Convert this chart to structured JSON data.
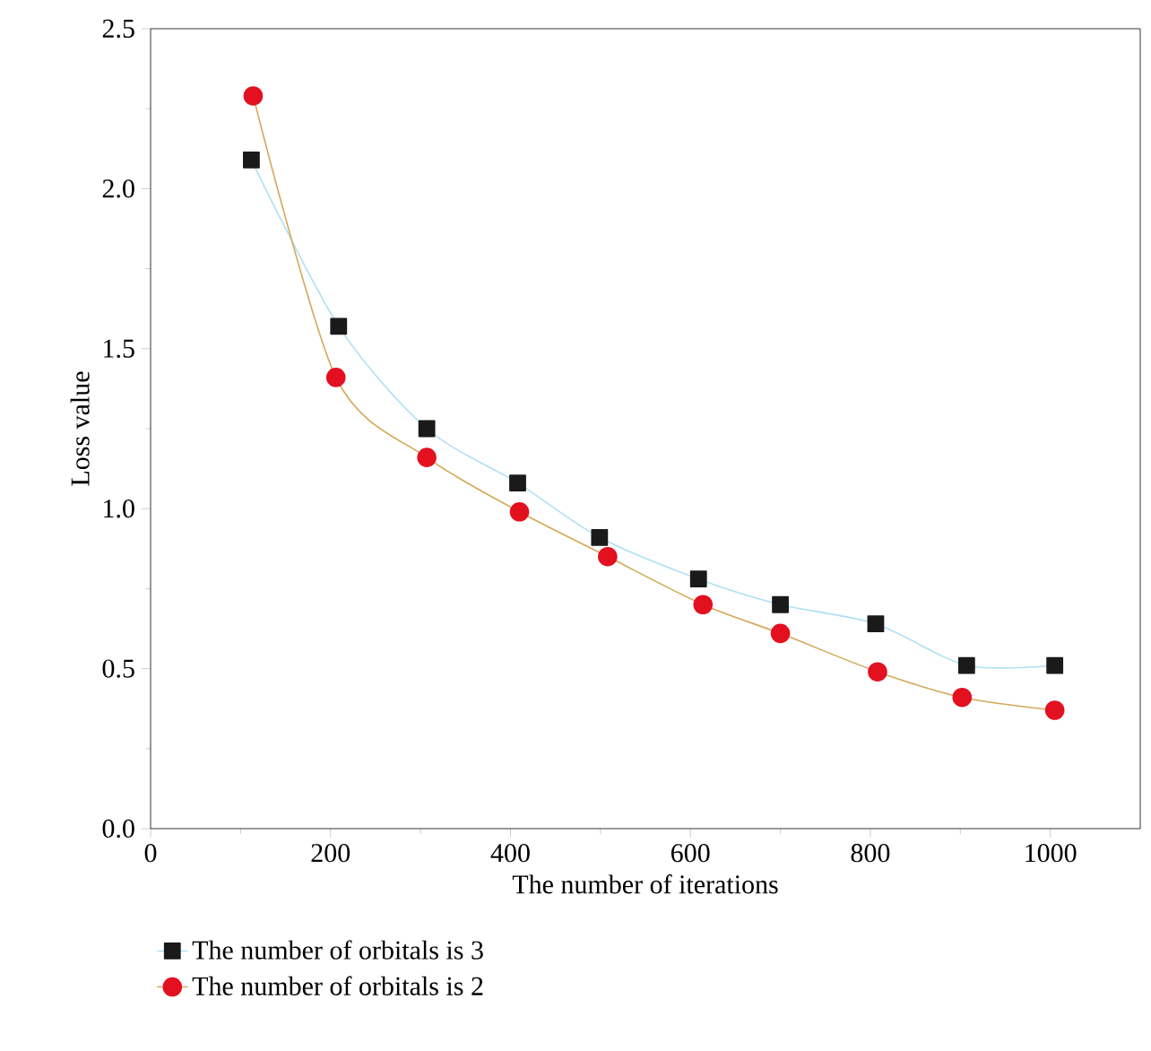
{
  "chart_data": {
    "type": "line",
    "xlabel": "The number of iterations",
    "ylabel": "Loss value",
    "xlim": [
      0,
      1100
    ],
    "xticks": [
      0,
      200,
      400,
      600,
      800,
      1000
    ],
    "ylim": [
      0,
      2.5
    ],
    "yticks": [
      {
        "value": 0,
        "label": "0.0"
      },
      {
        "value": 0.5,
        "label": "0.5"
      },
      {
        "value": 1,
        "label": "1.0"
      },
      {
        "value": 1.5,
        "label": "1.5"
      },
      {
        "value": 2,
        "label": "2.0"
      },
      {
        "value": 2.5,
        "label": "2.5"
      }
    ],
    "legend": "bottom",
    "grid": false,
    "series": [
      {
        "name": "The number of orbitals is 3",
        "color": "#1a1a1a",
        "marker": "square",
        "x": [
          112,
          209,
          307,
          408,
          499,
          609,
          700,
          806,
          907,
          1005
        ],
        "values": [
          2.09,
          1.57,
          1.25,
          1.08,
          0.91,
          0.78,
          0.7,
          0.64,
          0.51,
          0.51
        ]
      },
      {
        "name": "The number of orbitals is 2",
        "color": "#e31020",
        "marker": "circle",
        "x": [
          114,
          206,
          307,
          410,
          508,
          614,
          700,
          808,
          902,
          1005
        ],
        "values": [
          2.29,
          1.41,
          1.16,
          0.99,
          0.85,
          0.7,
          0.61,
          0.49,
          0.41,
          0.37
        ]
      }
    ]
  }
}
